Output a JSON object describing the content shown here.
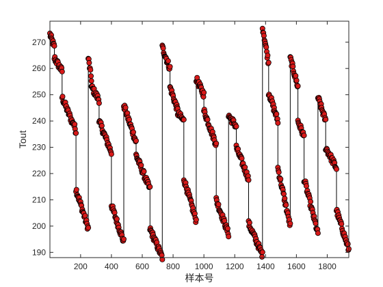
{
  "chart_data": {
    "type": "line",
    "title": "",
    "xlabel": "样本号",
    "ylabel": "Tout",
    "xlim": [
      1,
      1940
    ],
    "ylim": [
      188,
      278
    ],
    "xticks": [
      200,
      400,
      600,
      800,
      1000,
      1200,
      1400,
      1600,
      1800
    ],
    "yticks": [
      190,
      200,
      210,
      220,
      230,
      240,
      250,
      260,
      270
    ],
    "grid": false,
    "legend": "none",
    "colors": {
      "line": "#000000",
      "marker_fill": "#d81a1a",
      "marker_edge": "#000000",
      "axes": "#262626"
    },
    "series": [
      {
        "marker": "circle",
        "segments": [
          {
            "x_start": 1,
            "x_end": 30,
            "y_start": 273,
            "y_end": 268
          },
          {
            "x_start": 30,
            "x_end": 80,
            "y_start": 264,
            "y_end": 259
          },
          {
            "x_start": 80,
            "x_end": 150,
            "y_start": 249,
            "y_end": 239
          },
          {
            "x_start": 150,
            "x_end": 170,
            "y_start": 240,
            "y_end": 236
          },
          {
            "x_start": 170,
            "x_end": 250,
            "y_start": 214,
            "y_end": 199
          },
          {
            "x_start": 250,
            "x_end": 270,
            "y_start": 264,
            "y_end": 256
          },
          {
            "x_start": 270,
            "x_end": 320,
            "y_start": 253,
            "y_end": 248
          },
          {
            "x_start": 320,
            "x_end": 400,
            "y_start": 240,
            "y_end": 228
          },
          {
            "x_start": 400,
            "x_end": 480,
            "y_start": 208,
            "y_end": 194
          },
          {
            "x_start": 480,
            "x_end": 560,
            "y_start": 246,
            "y_end": 232
          },
          {
            "x_start": 560,
            "x_end": 650,
            "y_start": 227,
            "y_end": 214
          },
          {
            "x_start": 650,
            "x_end": 730,
            "y_start": 199,
            "y_end": 188
          },
          {
            "x_start": 730,
            "x_end": 780,
            "y_start": 268,
            "y_end": 260
          },
          {
            "x_start": 780,
            "x_end": 830,
            "y_start": 253,
            "y_end": 244
          },
          {
            "x_start": 830,
            "x_end": 870,
            "y_start": 243,
            "y_end": 240
          },
          {
            "x_start": 870,
            "x_end": 950,
            "y_start": 218,
            "y_end": 202
          },
          {
            "x_start": 950,
            "x_end": 1000,
            "y_start": 256,
            "y_end": 250
          },
          {
            "x_start": 1000,
            "x_end": 1080,
            "y_start": 244,
            "y_end": 231
          },
          {
            "x_start": 1080,
            "x_end": 1160,
            "y_start": 210,
            "y_end": 197
          },
          {
            "x_start": 1160,
            "x_end": 1210,
            "y_start": 242,
            "y_end": 238
          },
          {
            "x_start": 1210,
            "x_end": 1290,
            "y_start": 230,
            "y_end": 218
          },
          {
            "x_start": 1290,
            "x_end": 1380,
            "y_start": 201,
            "y_end": 189
          },
          {
            "x_start": 1380,
            "x_end": 1420,
            "y_start": 276,
            "y_end": 262
          },
          {
            "x_start": 1420,
            "x_end": 1480,
            "y_start": 251,
            "y_end": 240
          },
          {
            "x_start": 1480,
            "x_end": 1560,
            "y_start": 222,
            "y_end": 200
          },
          {
            "x_start": 1560,
            "x_end": 1610,
            "y_start": 264,
            "y_end": 253
          },
          {
            "x_start": 1610,
            "x_end": 1650,
            "y_start": 240,
            "y_end": 234
          },
          {
            "x_start": 1650,
            "x_end": 1740,
            "y_start": 218,
            "y_end": 197
          },
          {
            "x_start": 1740,
            "x_end": 1790,
            "y_start": 249,
            "y_end": 240
          },
          {
            "x_start": 1790,
            "x_end": 1860,
            "y_start": 230,
            "y_end": 222
          },
          {
            "x_start": 1860,
            "x_end": 1940,
            "y_start": 206,
            "y_end": 191
          }
        ]
      }
    ]
  }
}
